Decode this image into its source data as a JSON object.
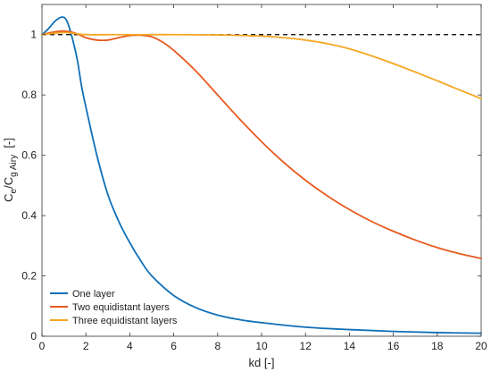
{
  "chart_data": {
    "type": "line",
    "xlabel": "kd [-]",
    "ylabel": {
      "base": "C",
      "sub1": "e",
      "mid": "/C",
      "sub2": "g Airy",
      "unit": "  [-]"
    },
    "xlim": [
      0,
      20
    ],
    "ylim": [
      0,
      1.1
    ],
    "xticks": [
      0,
      2,
      4,
      6,
      8,
      10,
      12,
      14,
      16,
      18,
      20
    ],
    "yticks": [
      0,
      0.2,
      0.4,
      0.6,
      0.8,
      1
    ],
    "grid": false,
    "legend_position": "bottom-left",
    "reference_line": {
      "y": 1,
      "style": "dashed",
      "color": "#000000"
    },
    "series": [
      {
        "name": "One layer",
        "color": "#0f6fb8",
        "x": [
          0,
          0.3,
          0.6,
          0.9,
          1.1,
          1.3,
          1.6,
          1.8,
          2,
          2.5,
          3,
          3.5,
          4,
          4.5,
          5,
          6,
          7,
          8,
          9,
          10,
          12,
          14,
          16,
          18,
          20
        ],
        "y": [
          1.0,
          1.02,
          1.045,
          1.058,
          1.05,
          1.01,
          0.92,
          0.83,
          0.76,
          0.6,
          0.47,
          0.38,
          0.31,
          0.25,
          0.2,
          0.135,
          0.095,
          0.07,
          0.055,
          0.045,
          0.03,
          0.022,
          0.016,
          0.012,
          0.01
        ]
      },
      {
        "name": "Two equidistant layers",
        "color": "#e65a1e",
        "x": [
          0,
          0.5,
          1,
          1.5,
          2,
          2.5,
          3,
          3.5,
          4,
          4.5,
          5,
          5.5,
          6,
          7,
          8,
          9,
          10,
          11,
          12,
          13,
          14,
          15,
          16,
          17,
          18,
          19,
          20
        ],
        "y": [
          1.0,
          1.008,
          1.012,
          1.005,
          0.99,
          0.982,
          0.982,
          0.99,
          0.997,
          0.998,
          0.993,
          0.975,
          0.948,
          0.88,
          0.8,
          0.72,
          0.645,
          0.577,
          0.517,
          0.465,
          0.42,
          0.381,
          0.348,
          0.319,
          0.294,
          0.274,
          0.258
        ]
      },
      {
        "name": "Three equidistant layers",
        "color": "#f5a623",
        "x": [
          0,
          0.5,
          1,
          1.5,
          2,
          4,
          6,
          8,
          10,
          11,
          12,
          13,
          14,
          15,
          16,
          17,
          18,
          19,
          20
        ],
        "y": [
          1.0,
          1.004,
          1.007,
          1.004,
          1.0,
          1.0,
          1.0,
          0.999,
          0.995,
          0.99,
          0.982,
          0.97,
          0.953,
          0.93,
          0.904,
          0.876,
          0.847,
          0.817,
          0.788
        ]
      }
    ]
  }
}
